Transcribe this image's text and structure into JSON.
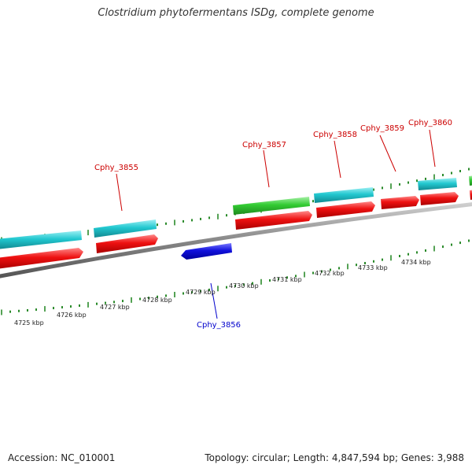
{
  "title": "Clostridium phytofermentans ISDg, complete genome",
  "footer": {
    "accession": "Accession: NC_010001",
    "topology": "Topology: circular; Length: 4,847,594 bp; Genes: 3,988"
  },
  "colors": {
    "backbone": "#888888",
    "tick": "#2a8a2a",
    "cds": "#ee1111",
    "gene_cyan": "#22c8d0",
    "gene_green": "#33cc33",
    "reverse_strand": "#1111dd",
    "label_forward": "#cc0000",
    "label_reverse": "#0000cc"
  },
  "scale": {
    "ticks": [
      "4725 kbp",
      "4726 kbp",
      "4727 kbp",
      "4728 kbp",
      "4729 kbp",
      "4730 kbp",
      "4731 kbp",
      "4732 kbp",
      "4733 kbp",
      "4734 kbp"
    ]
  },
  "genes": [
    {
      "name": "Cphy_3855",
      "strand": "forward"
    },
    {
      "name": "Cphy_3856",
      "strand": "reverse"
    },
    {
      "name": "Cphy_3857",
      "strand": "forward"
    },
    {
      "name": "Cphy_3858",
      "strand": "forward"
    },
    {
      "name": "Cphy_3859",
      "strand": "forward"
    },
    {
      "name": "Cphy_3860",
      "strand": "forward"
    }
  ]
}
